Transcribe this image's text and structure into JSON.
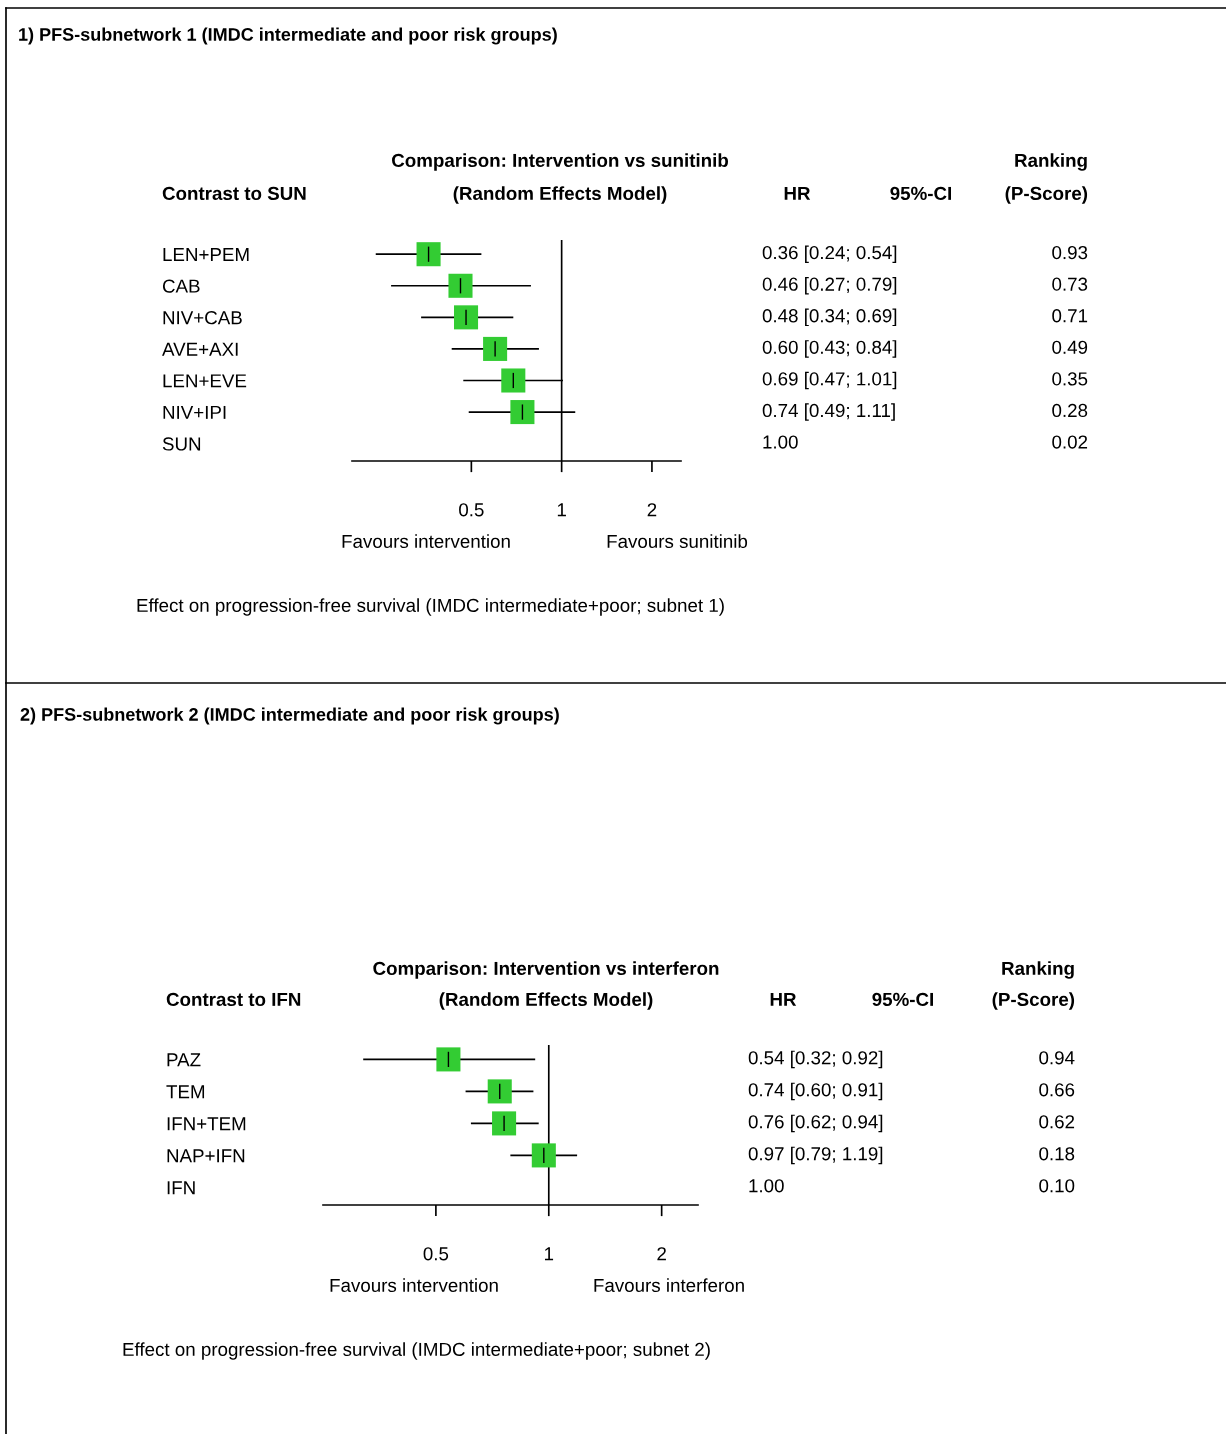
{
  "chart_data": [
    {
      "type": "scatter",
      "orientation": "horizontal",
      "title": "1) PFS-subnetwork 1 (IMDC intermediate and poor risk groups)",
      "xlabel": "Effect on progression-free survival (IMDC intermediate+poor; subnet 1)",
      "categories": [
        "LEN+PEM",
        "CAB",
        "NIV+CAB",
        "AVE+AXI",
        "LEN+EVE",
        "NIV+IPI",
        "SUN"
      ],
      "color": "#33cc33",
      "values": [
        0.36,
        0.46,
        0.48,
        0.6,
        0.69,
        0.74,
        null
      ],
      "errors": [
        [
          0.24,
          0.54
        ],
        [
          0.27,
          0.79
        ],
        [
          0.34,
          0.69
        ],
        [
          0.43,
          0.84
        ],
        [
          0.47,
          1.01
        ],
        [
          0.49,
          1.11
        ],
        null
      ],
      "value_labels": [
        "0.36 [0.24; 0.54]",
        "0.46 [0.27; 0.79]",
        "0.48 [0.34; 0.69]",
        "0.60 [0.43; 0.84]",
        "0.69 [0.47; 1.01]",
        "0.74 [0.49; 1.11]",
        "1.00"
      ],
      "log": "x",
      "xlim": [
        0.2,
        2.5
      ],
      "xticks": [
        0.5,
        1,
        2
      ],
      "marker": "square",
      "grid": false,
      "ref_lines": [
        {
          "axis": "x",
          "value": 1
        }
      ],
      "annotations": [
        "Comparison: Intervention vs sunitinib",
        "Contrast to SUN",
        "(Random Effects Model)",
        "HR",
        "95%-CI",
        "Ranking",
        "(P-Score)",
        "Favours intervention",
        "Favours sunitinib",
        "0.93",
        "0.73",
        "0.71",
        "0.49",
        "0.35",
        "0.28",
        "0.02"
      ]
    },
    {
      "type": "scatter",
      "orientation": "horizontal",
      "title": "2) PFS-subnetwork 2 (IMDC intermediate and poor risk groups)",
      "xlabel": "Effect on progression-free survival (IMDC intermediate+poor; subnet 2)",
      "categories": [
        "PAZ",
        "TEM",
        "IFN+TEM",
        "NAP+IFN",
        "IFN"
      ],
      "color": "#33cc33",
      "values": [
        0.54,
        0.74,
        0.76,
        0.97,
        null
      ],
      "errors": [
        [
          0.32,
          0.92
        ],
        [
          0.6,
          0.91
        ],
        [
          0.62,
          0.94
        ],
        [
          0.79,
          1.19
        ],
        null
      ],
      "value_labels": [
        "0.54 [0.32; 0.92]",
        "0.74 [0.60; 0.91]",
        "0.76 [0.62; 0.94]",
        "0.97 [0.79; 1.19]",
        "1.00"
      ],
      "log": "x",
      "xlim": [
        0.25,
        2.5
      ],
      "xticks": [
        0.5,
        1,
        2
      ],
      "marker": "square",
      "grid": false,
      "ref_lines": [
        {
          "axis": "x",
          "value": 1
        }
      ],
      "annotations": [
        "Comparison: Intervention vs interferon",
        "Contrast to IFN",
        "(Random Effects Model)",
        "HR",
        "95%-CI",
        "Ranking",
        "(P-Score)",
        "Favours intervention",
        "Favours interferon",
        "0.94",
        "0.66",
        "0.62",
        "0.18",
        "0.10"
      ]
    }
  ]
}
